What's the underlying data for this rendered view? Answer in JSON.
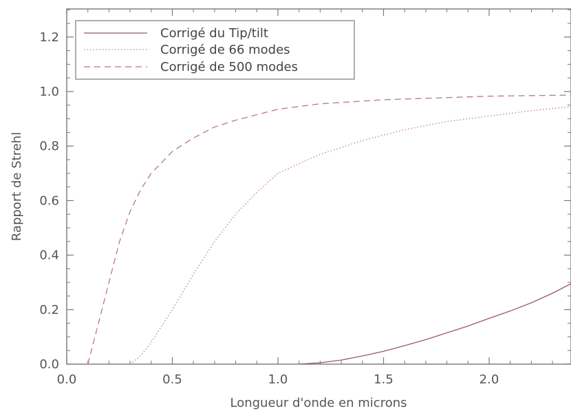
{
  "chart_data": {
    "type": "line",
    "xlabel": "Longueur d'onde en microns",
    "ylabel": "Rapport de Strehl",
    "xlim": [
      0.0,
      2.4
    ],
    "ylim": [
      0.0,
      1.3
    ],
    "xticks": [
      0.0,
      0.5,
      1.0,
      1.5,
      2.0
    ],
    "xtick_labels": [
      "0.0",
      "0.5",
      "1.0",
      "1.5",
      "2.0"
    ],
    "yticks": [
      0.0,
      0.2,
      0.4,
      0.6,
      0.8,
      1.0,
      1.2
    ],
    "ytick_labels": [
      "0.0",
      "0.2",
      "0.4",
      "0.6",
      "0.8",
      "1.0",
      "1.2"
    ],
    "grid": false,
    "legend_position": "top-left",
    "series": [
      {
        "name": "Corrigé du Tip/tilt",
        "style": "solid",
        "color": "#9a5a5a",
        "x": [
          1.1,
          1.2,
          1.3,
          1.4,
          1.5,
          1.6,
          1.7,
          1.8,
          1.9,
          2.0,
          2.1,
          2.2,
          2.3,
          2.4
        ],
        "y": [
          0.0,
          0.005,
          0.015,
          0.03,
          0.047,
          0.068,
          0.09,
          0.115,
          0.14,
          0.168,
          0.195,
          0.225,
          0.26,
          0.3
        ]
      },
      {
        "name": "Corrigé de 66 modes",
        "style": "dotted",
        "color": "#c08080",
        "x": [
          0.3,
          0.35,
          0.4,
          0.5,
          0.6,
          0.7,
          0.8,
          0.9,
          1.0,
          1.2,
          1.4,
          1.6,
          1.8,
          2.0,
          2.2,
          2.4
        ],
        "y": [
          0.0,
          0.03,
          0.08,
          0.2,
          0.33,
          0.45,
          0.55,
          0.63,
          0.7,
          0.77,
          0.82,
          0.86,
          0.89,
          0.91,
          0.93,
          0.945
        ]
      },
      {
        "name": "Corrigé de 500 modes",
        "style": "dashed",
        "color": "#b87878",
        "x": [
          0.1,
          0.15,
          0.2,
          0.25,
          0.3,
          0.35,
          0.4,
          0.5,
          0.6,
          0.7,
          0.8,
          1.0,
          1.2,
          1.5,
          2.0,
          2.4
        ],
        "y": [
          0.0,
          0.15,
          0.3,
          0.45,
          0.56,
          0.64,
          0.7,
          0.78,
          0.83,
          0.87,
          0.895,
          0.935,
          0.955,
          0.97,
          0.983,
          0.987
        ]
      }
    ]
  }
}
